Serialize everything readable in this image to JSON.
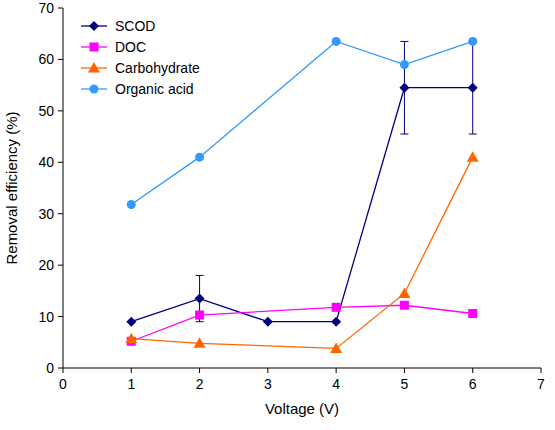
{
  "chart_data": {
    "type": "line",
    "x_label": "Voltage (V)",
    "y_label": "Removal efficiency (%)",
    "xlim": [
      0,
      7
    ],
    "xticks": [
      0,
      1,
      2,
      3,
      4,
      5,
      6,
      7
    ],
    "ylim": [
      0,
      70
    ],
    "yticks": [
      0,
      10,
      20,
      30,
      40,
      50,
      60,
      70
    ],
    "grid": false,
    "legend": "upper-left",
    "series": [
      {
        "name": "SCOD",
        "color": "#000080",
        "marker": "diamond",
        "x": [
          1,
          2,
          3,
          4,
          5,
          6
        ],
        "values": [
          9,
          13.5,
          9,
          9,
          54.5,
          54.5
        ],
        "errors": [
          null,
          4.5,
          null,
          null,
          9,
          9
        ]
      },
      {
        "name": "DOC",
        "color": "#ff00ff",
        "marker": "square",
        "x": [
          1,
          2,
          4,
          5,
          6
        ],
        "values": [
          5.2,
          10.3,
          11.8,
          12.2,
          10.6
        ]
      },
      {
        "name": "Carbohydrate",
        "color": "#ff6600",
        "marker": "triangle",
        "x": [
          1,
          2,
          4,
          5,
          6
        ],
        "values": [
          5.7,
          4.8,
          3.8,
          14.5,
          41
        ]
      },
      {
        "name": "Organic acid",
        "color": "#3399ff",
        "marker": "circle",
        "x": [
          1,
          2,
          4,
          5,
          6
        ],
        "values": [
          31.8,
          41,
          63.5,
          59,
          63.5
        ]
      }
    ]
  }
}
